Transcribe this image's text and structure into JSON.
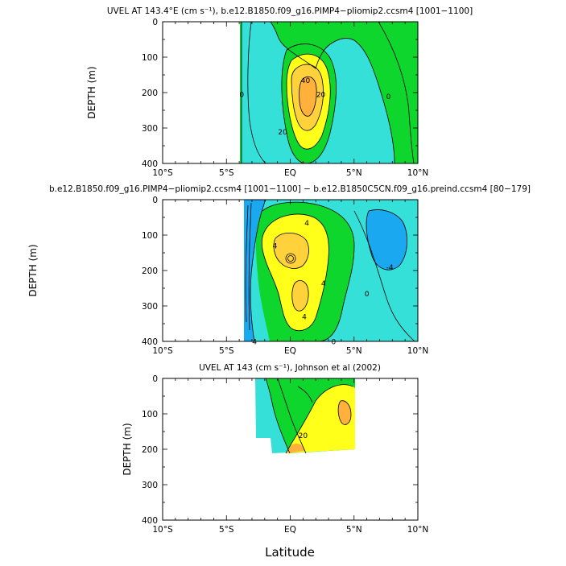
{
  "chart_data": [
    {
      "type": "contour",
      "title": "UVEL AT 143.4°E (cm s⁻¹), b.e12.B1850.f09_g16.PIMP4−pliomip2.ccsm4 [1001−1100]",
      "ylabel": "DEPTH (m)",
      "xlabel": "",
      "x_ticks": [
        "10°S",
        "5°S",
        "EQ",
        "5°N",
        "10°N"
      ],
      "y_ticks": [
        "0",
        "100",
        "200",
        "300",
        "400"
      ],
      "xlim": [
        -10,
        10
      ],
      "ylim": [
        0,
        400
      ],
      "contour_labels": [
        {
          "text": "40",
          "x": 1.2,
          "y": 165
        },
        {
          "text": "20",
          "x": 2.4,
          "y": 205
        },
        {
          "text": "20",
          "x": -0.6,
          "y": 310
        },
        {
          "text": "0",
          "x": -3.8,
          "y": 205
        },
        {
          "text": "0",
          "x": 7.7,
          "y": 210
        }
      ],
      "regions": [
        {
          "level": "0 to 10",
          "color": "#35e0d8"
        },
        {
          "level": "10 to 20",
          "color": "#0fd62c"
        },
        {
          "level": "20 to 30",
          "color": "#ffff1a"
        },
        {
          "level": "30 to 40",
          "color": "#ffd23c"
        },
        {
          "level": ">40",
          "color": "#ffb13c"
        }
      ]
    },
    {
      "type": "contour",
      "title": "b.e12.B1850.f09_g16.PIMP4−pliomip2.ccsm4 [1001−1100] − b.e12.B1850C5CN.f09_g16.preind.ccsm4 [80−179]",
      "ylabel": "DEPTH (m)",
      "xlabel": "",
      "x_ticks": [
        "10°S",
        "5°S",
        "EQ",
        "5°N",
        "10°N"
      ],
      "y_ticks": [
        "0",
        "100",
        "200",
        "300",
        "400"
      ],
      "xlim": [
        -10,
        10
      ],
      "ylim": [
        0,
        400
      ],
      "contour_labels": [
        {
          "text": "4",
          "x": 1.3,
          "y": 65
        },
        {
          "text": "4",
          "x": 2.6,
          "y": 235
        },
        {
          "text": "-4",
          "x": 7.8,
          "y": 190
        },
        {
          "text": "0",
          "x": 6.0,
          "y": 265
        },
        {
          "text": "0",
          "x": 3.4,
          "y": 400
        },
        {
          "text": "4",
          "x": -2.8,
          "y": 400
        },
        {
          "text": "4",
          "x": -1.2,
          "y": 130
        },
        {
          "text": "4",
          "x": 1.1,
          "y": 330
        }
      ],
      "regions": [
        {
          "level": "< -4",
          "color": "#1aa8f0"
        },
        {
          "level": "-4 to 0",
          "color": "#35e0d8"
        },
        {
          "level": "0 to 4",
          "color": "#0fd62c"
        },
        {
          "level": "4 to 8",
          "color": "#ffff1a"
        },
        {
          "level": ">8",
          "color": "#ffd23c"
        }
      ]
    },
    {
      "type": "contour",
      "title": "UVEL AT 143 (cm s⁻¹), Johnson et al (2002)",
      "ylabel": "DEPTH (m)",
      "xlabel": "Latitude",
      "x_ticks": [
        "10°S",
        "5°S",
        "EQ",
        "5°N",
        "10°N"
      ],
      "y_ticks": [
        "0",
        "100",
        "200",
        "300",
        "400"
      ],
      "xlim": [
        -10,
        10
      ],
      "ylim": [
        0,
        400
      ],
      "data_extent": {
        "lat": [
          -2.7,
          5.2
        ],
        "depth": [
          0,
          220
        ]
      },
      "contour_labels": [
        {
          "text": "20",
          "x": 1.0,
          "y": 160
        }
      ],
      "regions": [
        {
          "level": "< 0",
          "color": "#35e0d8"
        },
        {
          "level": "0 to 20",
          "color": "#0fd62c"
        },
        {
          "level": "20 to 40",
          "color": "#ffff1a"
        },
        {
          "level": ">40",
          "color": "#ffb13c"
        }
      ]
    }
  ]
}
